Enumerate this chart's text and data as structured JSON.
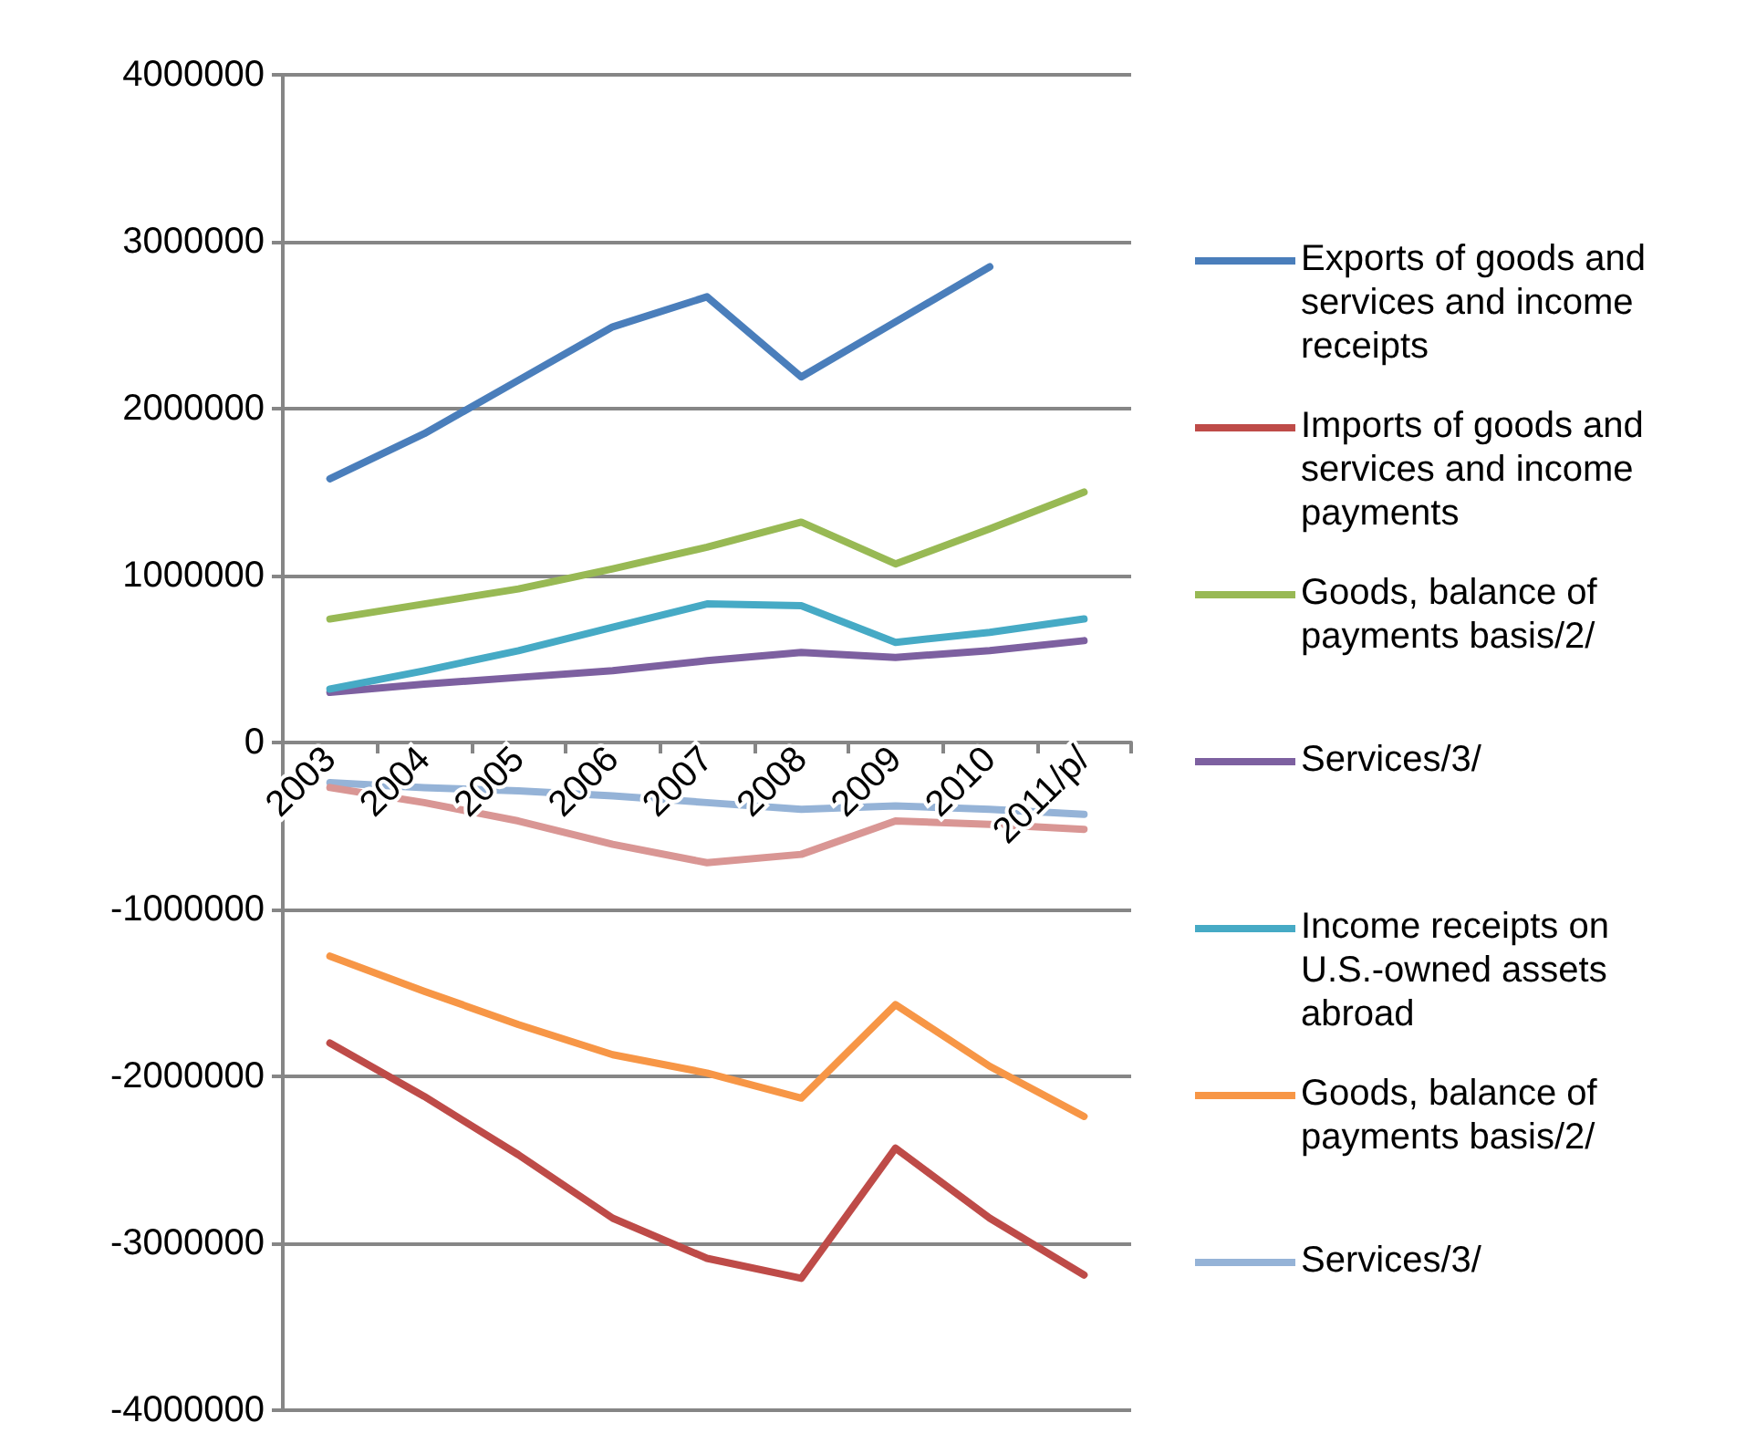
{
  "chart_data": {
    "type": "line",
    "categories": [
      "2003",
      "2004",
      "2005",
      "2006",
      "2007",
      "2008",
      "2009",
      "2010",
      "2011/p/"
    ],
    "series": [
      {
        "name": "Exports of goods and services and income receipts",
        "color": "#4a7ebb",
        "values": [
          1580000,
          1850000,
          2170000,
          2490000,
          2670000,
          2190000,
          2520000,
          2850000,
          null
        ]
      },
      {
        "name": "Imports of goods and services and income payments",
        "color": "#be4b48",
        "values": [
          -1800000,
          -2120000,
          -2470000,
          -2850000,
          -3090000,
          -3210000,
          -2430000,
          -2850000,
          -3190000
        ]
      },
      {
        "name": "Goods, balance of payments basis/2/",
        "color": "#98b954",
        "values": [
          740000,
          830000,
          920000,
          1040000,
          1170000,
          1320000,
          1070000,
          1280000,
          1500000
        ]
      },
      {
        "name": "Services/3/",
        "color": "#7d60a0",
        "values": [
          300000,
          350000,
          390000,
          430000,
          490000,
          540000,
          510000,
          550000,
          610000
        ]
      },
      {
        "name": "Income receipts on U.S.-owned assets abroad",
        "color": "#46aac5",
        "values": [
          320000,
          430000,
          550000,
          690000,
          830000,
          820000,
          600000,
          660000,
          740000
        ]
      },
      {
        "name": "Goods, balance of payments basis/2/",
        "color": "#f79646",
        "values": [
          -1280000,
          -1490000,
          -1690000,
          -1870000,
          -1980000,
          -2130000,
          -1570000,
          -1940000,
          -2240000
        ]
      },
      {
        "name": "Services/3/",
        "color": "#95b3d7",
        "values": [
          -240000,
          -270000,
          -290000,
          -320000,
          -360000,
          -400000,
          -380000,
          -400000,
          -430000
        ]
      },
      {
        "color": "#d99694",
        "values": [
          -270000,
          -360000,
          -470000,
          -610000,
          -720000,
          -670000,
          -470000,
          -490000,
          -520000
        ]
      }
    ],
    "ylim": [
      -4000000,
      4000000
    ],
    "yticks": [
      -4000000,
      -3000000,
      -2000000,
      -1000000,
      0,
      1000000,
      2000000,
      3000000,
      4000000
    ],
    "grid": "y",
    "legend": "right",
    "marker": "none",
    "line_style": "solid"
  }
}
